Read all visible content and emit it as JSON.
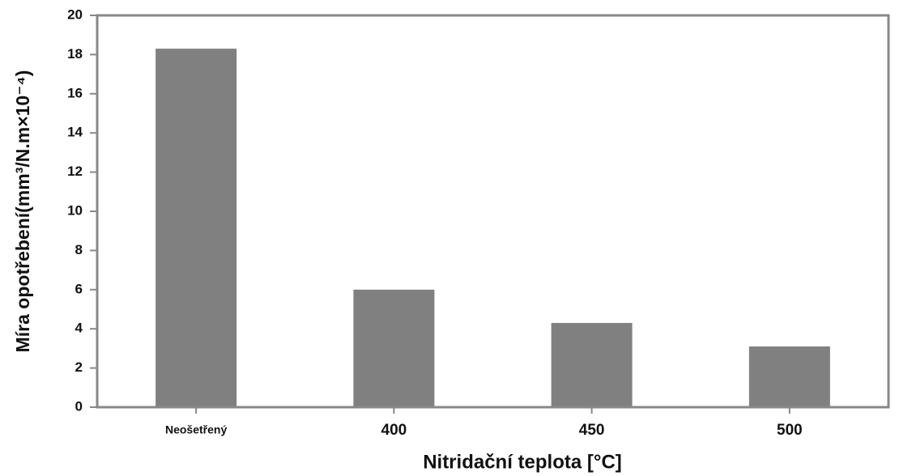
{
  "chart_data": {
    "type": "bar",
    "x_label": "Nitridační teplota [°C]",
    "y_label": "Míra opotřebení(mm³/N.m×10⁻⁴)",
    "categories": [
      "Neošetřený",
      "400",
      "450",
      "500"
    ],
    "values": [
      18.3,
      6.0,
      4.3,
      3.1
    ],
    "color": "#808080",
    "ylim": [
      0,
      20
    ],
    "yticks": [
      0,
      2,
      4,
      6,
      8,
      10,
      12,
      14,
      16,
      18,
      20
    ]
  }
}
